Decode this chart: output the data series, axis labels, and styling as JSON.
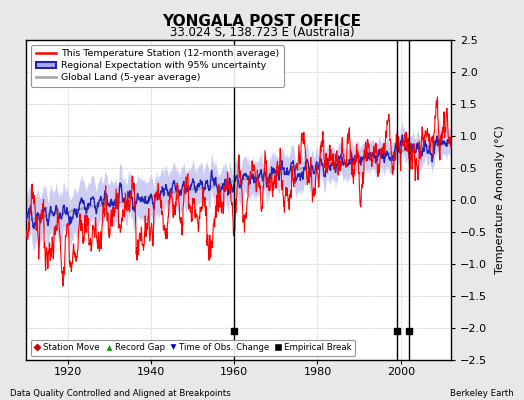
{
  "title": "YONGALA POST OFFICE",
  "subtitle": "33.024 S, 138.723 E (Australia)",
  "ylabel": "Temperature Anomaly (°C)",
  "xlabel_left": "Data Quality Controlled and Aligned at Breakpoints",
  "xlabel_right": "Berkeley Earth",
  "ylim": [
    -2.5,
    2.5
  ],
  "yticks": [
    -2.5,
    -2,
    -1.5,
    -1,
    -0.5,
    0,
    0.5,
    1,
    1.5,
    2,
    2.5
  ],
  "year_start": 1910,
  "year_end": 2012,
  "xticks": [
    1920,
    1940,
    1960,
    1980,
    2000
  ],
  "empirical_breaks": [
    1960,
    1999,
    2002
  ],
  "plot_bg": "#ffffff",
  "fig_bg": "#e8e8e8",
  "legend_entries": [
    {
      "label": "This Temperature Station (12-month average)",
      "color": "#ff0000",
      "lw": 1.5
    },
    {
      "label": "Regional Expectation with 95% uncertainty",
      "color": "#2222bb",
      "lw": 1.5
    },
    {
      "label": "Global Land (5-year average)",
      "color": "#aaaaaa",
      "lw": 2.0
    }
  ],
  "station_color": "#ff0000",
  "regional_color": "#2222bb",
  "regional_fill": "#aaaaee",
  "global_color": "#aaaaaa",
  "seed": 42
}
